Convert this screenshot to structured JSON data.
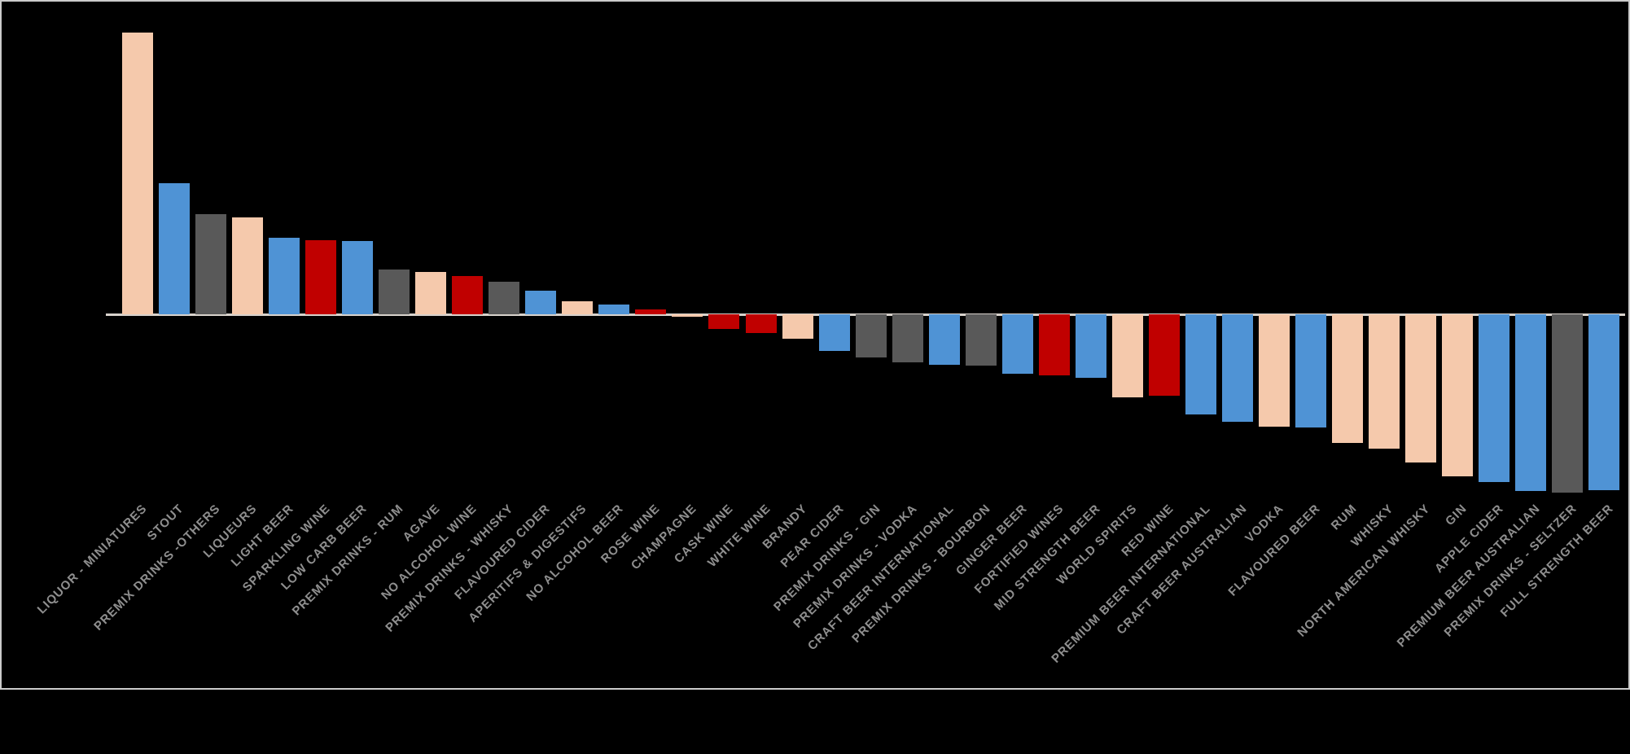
{
  "window": {
    "background": "#000000",
    "frame_border_color": "#CBCBCB"
  },
  "chart_data": {
    "type": "bar",
    "title": "",
    "xlabel": "",
    "ylabel": "",
    "legend": "none",
    "grid": false,
    "value_axis_labels_visible": false,
    "baseline": 0,
    "units": "relative bar length in screen pixels (no value axis shown in source image)",
    "ylim": [
      -230,
      350
    ],
    "axis_line_color": "#D8D2CC",
    "category_label_color": "#8F8F8F",
    "palette": {
      "peach": "#F5C9AC",
      "blue": "#4F93D5",
      "gray": "#595959",
      "red": "#C00000"
    },
    "categories": [
      "LIQUOR - MINIATURES",
      "STOUT",
      "PREMIX DRINKS -OTHERS",
      "LIQUEURS",
      "LIGHT BEER",
      "SPARKLING WINE",
      "LOW CARB BEER",
      "PREMIX DRINKS - RUM",
      "AGAVE",
      "NO ALCOHOL WINE",
      "PREMIX DRINKS - WHISKY",
      "FLAVOURED CIDER",
      "APERITIFS & DIGESTIFS",
      "NO ALCOHOL BEER",
      "ROSE WINE",
      "CHAMPAGNE",
      "CASK WINE",
      "WHITE WINE",
      "BRANDY",
      "PEAR CIDER",
      "PREMIX DRINKS - GIN",
      "PREMIX DRINKS - VODKA",
      "CRAFT BEER INTERNATIONAL",
      "PREMIX DRINKS - BOURBON",
      "GINGER BEER",
      "FORTIFIED WINES",
      "MID STRENGTH BEER",
      "WORLD SPIRITS",
      "RED WINE",
      "PREMIUM BEER INTERNATIONAL",
      "CRAFT BEER AUSTRALIAN",
      "VODKA",
      "FLAVOURED BEER",
      "RUM",
      "WHISKY",
      "NORTH AMERICAN WHISKY",
      "GIN",
      "APPLE CIDER",
      "PREMIUM BEER AUSTRALIAN",
      "PREMIX DRINKS - SELTZER",
      "FULL STRENGTH BEER"
    ],
    "series": [
      {
        "name": "value",
        "values": [
          346,
          161,
          123,
          119,
          94,
          91,
          90,
          55,
          52,
          47,
          40,
          29,
          16,
          12,
          6,
          -3,
          -18,
          -23,
          -30,
          -45,
          -53,
          -59,
          -62,
          -63,
          -73,
          -75,
          -78,
          -102,
          -100,
          -123,
          -132,
          -138,
          -139,
          -158,
          -165,
          -182,
          -199,
          -206,
          -217,
          -219,
          -216
        ]
      }
    ],
    "bar_colors": [
      "peach",
      "blue",
      "gray",
      "peach",
      "blue",
      "red",
      "blue",
      "gray",
      "peach",
      "red",
      "gray",
      "blue",
      "peach",
      "blue",
      "red",
      "peach",
      "red",
      "red",
      "peach",
      "blue",
      "gray",
      "gray",
      "blue",
      "gray",
      "blue",
      "red",
      "blue",
      "peach",
      "red",
      "blue",
      "blue",
      "peach",
      "blue",
      "peach",
      "peach",
      "peach",
      "peach",
      "blue",
      "blue",
      "gray",
      "blue"
    ]
  }
}
